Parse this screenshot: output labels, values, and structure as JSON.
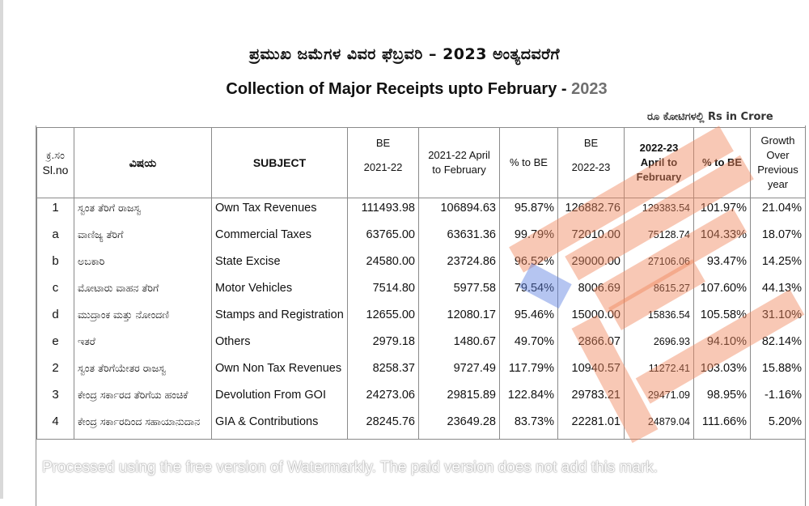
{
  "title_kannada": "ಪ್ರಮುಖ ಜಮೆಗಳ ವಿವರ  ಫೆಬ್ರವರಿ – 2023 ಅಂತ್ಯದವರೆಗೆ",
  "title_english": "Collection of Major Receipts upto  February -",
  "title_year": " 2023",
  "unit_label": "ರೂ ಕೋಟಿಗಳಲ್ಲಿ  Rs in Crore",
  "headers": {
    "slno_kn": "ಕ್ರ.ಸಂ",
    "slno_en": "Sl.no",
    "subject_kn": "ವಿಷಯ",
    "subject_en": "SUBJECT",
    "be_2122_l1": "BE",
    "be_2122_l2": "2021-22",
    "actual_2122": "2021-22 April to February",
    "pct_be_2122": "% to BE",
    "be_2223_l1": "BE",
    "be_2223_l2": "2022-23",
    "actual_2223": "2022-23 April to February",
    "pct_be_2223": "% to BE",
    "growth": "Growth Over Previous year"
  },
  "rows": [
    {
      "sl": "1",
      "kn": "ಸ್ವಂತ ತೆರಿಗೆ ರಾಜಸ್ವ",
      "subject": "Own Tax Revenues",
      "be_2122": "111493.98",
      "act_2122": "106894.63",
      "pct_2122": "95.87%",
      "be_2223": "126882.76",
      "act_2223": "129383.54",
      "pct_2223": "101.97%",
      "growth": "21.04%"
    },
    {
      "sl": "a",
      "kn": "ವಾಣಿಜ್ಯ ತೆರಿಗೆ",
      "subject": "Commercial Taxes",
      "be_2122": "63765.00",
      "act_2122": "63631.36",
      "pct_2122": "99.79%",
      "be_2223": "72010.00",
      "act_2223": "75128.74",
      "pct_2223": "104.33%",
      "growth": "18.07%"
    },
    {
      "sl": "b",
      "kn": "ಅಬಕಾರಿ",
      "subject": "State Excise",
      "be_2122": "24580.00",
      "act_2122": "23724.86",
      "pct_2122": "96.52%",
      "be_2223": "29000.00",
      "act_2223": "27106.06",
      "pct_2223": "93.47%",
      "growth": "14.25%"
    },
    {
      "sl": "c",
      "kn": "ಮೋಟಾರು ವಾಹನ ತೆರಿಗೆ",
      "subject": "Motor Vehicles",
      "be_2122": "7514.80",
      "act_2122": "5977.58",
      "pct_2122": "79.54%",
      "be_2223": "8006.69",
      "act_2223": "8615.27",
      "pct_2223": "107.60%",
      "growth": "44.13%"
    },
    {
      "sl": "d",
      "kn": "ಮುದ್ರಾಂಕ ಮತ್ತು ನೋಂದಣಿ",
      "subject": "Stamps and Registration",
      "be_2122": "12655.00",
      "act_2122": "12080.17",
      "pct_2122": "95.46%",
      "be_2223": "15000.00",
      "act_2223": "15836.54",
      "pct_2223": "105.58%",
      "growth": "31.10%"
    },
    {
      "sl": "e",
      "kn": "ಇತರೆ",
      "subject": "Others",
      "be_2122": "2979.18",
      "act_2122": "1480.67",
      "pct_2122": "49.70%",
      "be_2223": "2866.07",
      "act_2223": "2696.93",
      "pct_2223": "94.10%",
      "growth": "82.14%"
    },
    {
      "sl": "2",
      "kn": "ಸ್ವಂತ ತೆರಿಗೆಯೇತರ ರಾಜಸ್ವ",
      "subject": "Own Non Tax Revenues",
      "be_2122": "8258.37",
      "act_2122": "9727.49",
      "pct_2122": "117.79%",
      "be_2223": "10940.57",
      "act_2223": "11272.41",
      "pct_2223": "103.03%",
      "growth": "15.88%"
    },
    {
      "sl": "3",
      "kn": "ಕೇಂದ್ರ ಸರ್ಕಾರದ ತೆರಿಗೆಯ ಹಂಚಿಕೆ",
      "subject": "Devolution From GOI",
      "be_2122": "24273.06",
      "act_2122": "29815.89",
      "pct_2122": "122.84%",
      "be_2223": "29783.21",
      "act_2223": "29471.09",
      "pct_2223": "98.95%",
      "growth": "-1.16%"
    },
    {
      "sl": "4",
      "kn": "ಕೇಂದ್ರ ಸರ್ಕಾರದಿಂದ ಸಹಾಯಾನುದಾನ",
      "subject": "GIA & Contributions",
      "be_2122": "28245.76",
      "act_2122": "23649.28",
      "pct_2122": "83.73%",
      "be_2223": "22281.01",
      "act_2223": "24879.04",
      "pct_2223": "111.66%",
      "growth": "5.20%"
    }
  ],
  "watermark_text": "Processed using the free version of Watermarkly. The paid version does not add this mark.",
  "colors": {
    "highlight_orange": "#f0855a",
    "highlight_blue": "#5b7fe0"
  }
}
